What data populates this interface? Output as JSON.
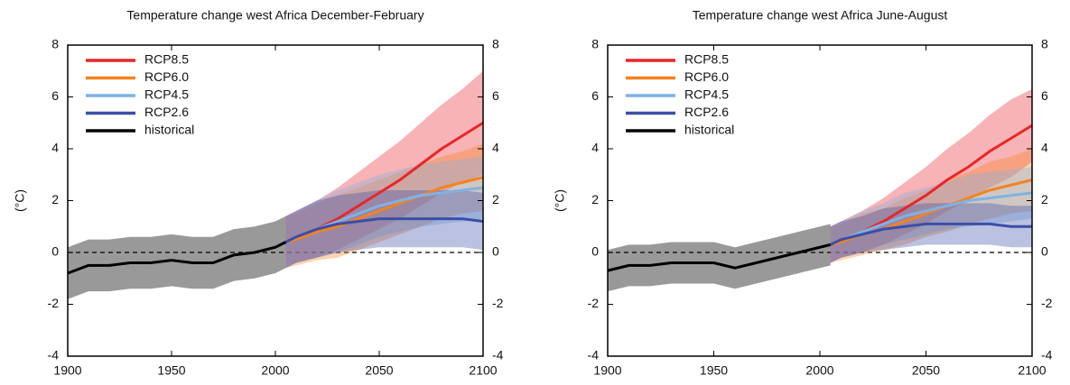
{
  "chart_data": [
    {
      "type": "line",
      "title": "Temperature change west Africa December-February",
      "ylabel": "(°C)",
      "xlim": [
        1900,
        2100
      ],
      "xticks": [
        1900,
        1950,
        2000,
        2050,
        2100
      ],
      "ylim": [
        -4,
        8
      ],
      "yticks": [
        -4,
        -2,
        0,
        2,
        4,
        6,
        8
      ],
      "y2lim": [
        -4,
        8
      ],
      "y2ticks": [
        -4,
        -2,
        0,
        2,
        4,
        6,
        8
      ],
      "reference_line": 0,
      "legend": "upper left",
      "series": [
        {
          "name": "RCP8.5",
          "color": "#e8262a",
          "x": [
            2005,
            2010,
            2020,
            2030,
            2040,
            2050,
            2060,
            2070,
            2080,
            2090,
            2100
          ],
          "values": [
            0.4,
            0.6,
            0.9,
            1.3,
            1.8,
            2.3,
            2.8,
            3.4,
            4.0,
            4.5,
            5.0
          ],
          "low": [
            -0.6,
            -0.4,
            -0.2,
            0.1,
            0.5,
            0.9,
            1.3,
            1.8,
            2.3,
            2.7,
            3.0
          ],
          "high": [
            1.4,
            1.6,
            2.0,
            2.5,
            3.1,
            3.7,
            4.3,
            5.0,
            5.7,
            6.3,
            7.0
          ]
        },
        {
          "name": "RCP6.0",
          "color": "#f58220",
          "x": [
            2005,
            2010,
            2020,
            2030,
            2040,
            2050,
            2060,
            2070,
            2080,
            2090,
            2100
          ],
          "values": [
            0.4,
            0.5,
            0.8,
            1.0,
            1.3,
            1.6,
            1.9,
            2.2,
            2.5,
            2.7,
            2.9
          ],
          "low": [
            -0.6,
            -0.5,
            -0.3,
            -0.2,
            0.1,
            0.4,
            0.7,
            1.0,
            1.3,
            1.5,
            1.6
          ],
          "high": [
            1.4,
            1.5,
            1.9,
            2.2,
            2.5,
            2.8,
            3.1,
            3.4,
            3.7,
            3.9,
            4.2
          ]
        },
        {
          "name": "RCP4.5",
          "color": "#7fb2e5",
          "x": [
            2005,
            2010,
            2020,
            2030,
            2040,
            2050,
            2060,
            2070,
            2080,
            2090,
            2100
          ],
          "values": [
            0.4,
            0.6,
            0.9,
            1.2,
            1.5,
            1.8,
            2.0,
            2.2,
            2.3,
            2.4,
            2.5
          ],
          "low": [
            -0.6,
            -0.4,
            -0.2,
            0.0,
            0.3,
            0.6,
            0.8,
            1.0,
            1.1,
            1.2,
            1.3
          ],
          "high": [
            1.4,
            1.6,
            2.0,
            2.4,
            2.7,
            3.0,
            3.2,
            3.4,
            3.5,
            3.6,
            3.7
          ]
        },
        {
          "name": "RCP2.6",
          "color": "#3b4ea8",
          "x": [
            2005,
            2010,
            2020,
            2030,
            2040,
            2050,
            2060,
            2070,
            2080,
            2090,
            2100
          ],
          "values": [
            0.4,
            0.6,
            0.9,
            1.1,
            1.2,
            1.3,
            1.3,
            1.3,
            1.3,
            1.3,
            1.2
          ],
          "low": [
            -0.6,
            -0.4,
            -0.2,
            0.0,
            0.1,
            0.2,
            0.2,
            0.2,
            0.2,
            0.2,
            0.1
          ],
          "high": [
            1.4,
            1.6,
            2.0,
            2.2,
            2.3,
            2.4,
            2.4,
            2.4,
            2.4,
            2.4,
            2.3
          ]
        },
        {
          "name": "historical",
          "color": "#000000",
          "x": [
            1900,
            1910,
            1920,
            1930,
            1940,
            1950,
            1960,
            1970,
            1980,
            1990,
            2000,
            2005
          ],
          "values": [
            -0.8,
            -0.5,
            -0.5,
            -0.4,
            -0.4,
            -0.3,
            -0.4,
            -0.4,
            -0.1,
            0.0,
            0.2,
            0.4
          ],
          "low": [
            -1.8,
            -1.5,
            -1.5,
            -1.4,
            -1.4,
            -1.3,
            -1.4,
            -1.4,
            -1.1,
            -1.0,
            -0.8,
            -0.6
          ],
          "high": [
            0.2,
            0.5,
            0.5,
            0.6,
            0.6,
            0.7,
            0.6,
            0.6,
            0.9,
            1.0,
            1.2,
            1.4
          ]
        }
      ]
    },
    {
      "type": "line",
      "title": "Temperature change west Africa June-August",
      "ylabel": "(°C)",
      "xlim": [
        1900,
        2100
      ],
      "xticks": [
        1900,
        1950,
        2000,
        2050,
        2100
      ],
      "ylim": [
        -4,
        8
      ],
      "yticks": [
        -4,
        -2,
        0,
        2,
        4,
        6,
        8
      ],
      "y2lim": [
        -4,
        8
      ],
      "y2ticks": [
        -4,
        -2,
        0,
        2,
        4,
        6,
        8
      ],
      "reference_line": 0,
      "legend": "upper left",
      "series": [
        {
          "name": "RCP8.5",
          "color": "#e8262a",
          "x": [
            2005,
            2010,
            2020,
            2030,
            2040,
            2050,
            2060,
            2070,
            2080,
            2090,
            2100
          ],
          "values": [
            0.3,
            0.5,
            0.8,
            1.2,
            1.7,
            2.2,
            2.8,
            3.3,
            3.9,
            4.4,
            4.9
          ],
          "low": [
            -0.4,
            -0.2,
            0.0,
            0.3,
            0.7,
            1.1,
            1.6,
            2.0,
            2.5,
            2.9,
            3.5
          ],
          "high": [
            1.0,
            1.2,
            1.6,
            2.1,
            2.7,
            3.3,
            4.0,
            4.6,
            5.3,
            5.9,
            6.3
          ]
        },
        {
          "name": "RCP6.0",
          "color": "#f58220",
          "x": [
            2005,
            2010,
            2020,
            2030,
            2040,
            2050,
            2060,
            2070,
            2080,
            2090,
            2100
          ],
          "values": [
            0.3,
            0.4,
            0.7,
            0.9,
            1.2,
            1.5,
            1.8,
            2.1,
            2.4,
            2.6,
            2.8
          ],
          "low": [
            -0.4,
            -0.3,
            -0.1,
            0.1,
            0.3,
            0.6,
            0.8,
            1.1,
            1.3,
            1.5,
            1.6
          ],
          "high": [
            1.0,
            1.1,
            1.5,
            1.7,
            2.1,
            2.4,
            2.8,
            3.1,
            3.5,
            3.7,
            4.0
          ]
        },
        {
          "name": "RCP4.5",
          "color": "#7fb2e5",
          "x": [
            2005,
            2010,
            2020,
            2030,
            2040,
            2050,
            2060,
            2070,
            2080,
            2090,
            2100
          ],
          "values": [
            0.3,
            0.5,
            0.8,
            1.1,
            1.4,
            1.6,
            1.8,
            2.0,
            2.1,
            2.2,
            2.3
          ],
          "low": [
            -0.4,
            -0.2,
            0.0,
            0.3,
            0.5,
            0.7,
            0.9,
            1.0,
            1.1,
            1.2,
            1.3
          ],
          "high": [
            1.0,
            1.2,
            1.6,
            1.9,
            2.3,
            2.5,
            2.7,
            3.0,
            3.1,
            3.2,
            3.3
          ]
        },
        {
          "name": "RCP2.6",
          "color": "#3b4ea8",
          "x": [
            2005,
            2010,
            2020,
            2030,
            2040,
            2050,
            2060,
            2070,
            2080,
            2090,
            2100
          ],
          "values": [
            0.3,
            0.5,
            0.7,
            0.9,
            1.0,
            1.1,
            1.1,
            1.1,
            1.1,
            1.0,
            1.0
          ],
          "low": [
            -0.4,
            -0.2,
            0.0,
            0.1,
            0.2,
            0.3,
            0.3,
            0.3,
            0.3,
            0.2,
            0.2
          ],
          "high": [
            1.0,
            1.2,
            1.4,
            1.7,
            1.8,
            1.9,
            1.9,
            1.9,
            1.9,
            1.8,
            1.8
          ]
        },
        {
          "name": "historical",
          "color": "#000000",
          "x": [
            1900,
            1910,
            1920,
            1930,
            1940,
            1950,
            1960,
            1970,
            1980,
            1990,
            2000,
            2005
          ],
          "values": [
            -0.7,
            -0.5,
            -0.5,
            -0.4,
            -0.4,
            -0.4,
            -0.6,
            -0.4,
            -0.2,
            0.0,
            0.2,
            0.3
          ],
          "low": [
            -1.5,
            -1.3,
            -1.3,
            -1.2,
            -1.2,
            -1.2,
            -1.4,
            -1.2,
            -1.0,
            -0.8,
            -0.6,
            -0.5
          ],
          "high": [
            0.1,
            0.3,
            0.3,
            0.4,
            0.4,
            0.4,
            0.2,
            0.4,
            0.6,
            0.8,
            1.0,
            1.1
          ]
        }
      ]
    }
  ]
}
